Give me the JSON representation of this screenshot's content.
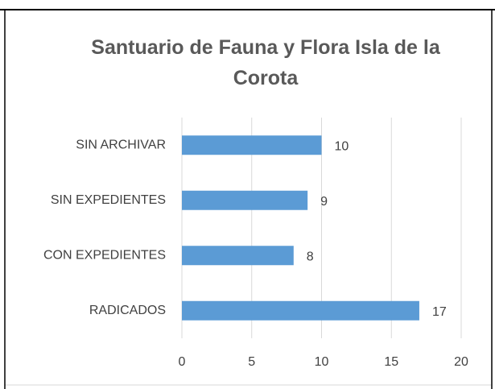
{
  "chart_data": {
    "type": "bar",
    "orientation": "horizontal",
    "title": "Santuario de Fauna y Flora Isla de la Corota",
    "categories": [
      "SIN ARCHIVAR",
      "SIN EXPEDIENTES",
      "CON EXPEDIENTES",
      "RADICADOS"
    ],
    "values": [
      10,
      9,
      8,
      17
    ],
    "color": "#5b9bd5",
    "xlim": [
      0,
      20
    ],
    "xticks": [
      0,
      5,
      10,
      15,
      20
    ],
    "grid": true
  }
}
